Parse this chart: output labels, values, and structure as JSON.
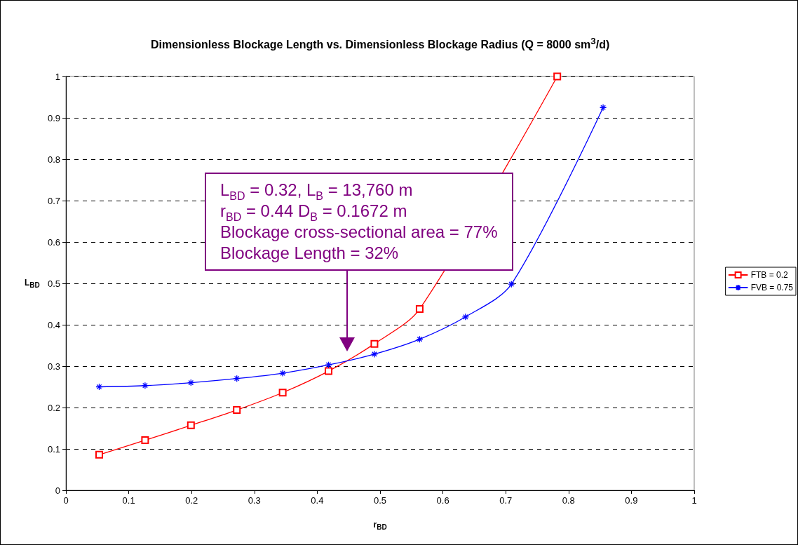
{
  "chart_data": {
    "type": "line",
    "title": "Dimensionless Blockage Length vs. Dimensionless Blockage Radius (Q = 8000 sm$^{3}$/d)",
    "xlabel": "r$_{BD}$",
    "ylabel": "L$_{BD}$",
    "x": [
      0.053,
      0.126,
      0.199,
      0.272,
      0.345,
      0.418,
      0.491,
      0.563,
      0.636,
      0.709,
      0.782,
      0.855
    ],
    "series": [
      {
        "name": "FTB = 0.2",
        "color": "#ff0000",
        "marker": "square",
        "values": [
          0.086,
          0.121,
          0.157,
          0.194,
          0.236,
          0.288,
          0.354,
          0.438,
          null,
          null,
          1.0,
          null
        ]
      },
      {
        "name": "FVB = 0.75",
        "color": "#0000ff",
        "marker": "cross",
        "values": [
          0.25,
          0.253,
          0.26,
          0.27,
          0.283,
          0.303,
          0.329,
          0.365,
          0.419,
          0.498,
          null,
          0.925
        ]
      }
    ],
    "xlim": [
      0,
      1
    ],
    "xticks": [
      0,
      0.1,
      0.2,
      0.3,
      0.4,
      0.5,
      0.6,
      0.7,
      0.8,
      0.9,
      1
    ],
    "ylim": [
      0,
      1
    ],
    "yticks": [
      0,
      0.1,
      0.2,
      0.3,
      0.4,
      0.5,
      0.6,
      0.7,
      0.8,
      0.9,
      1
    ],
    "grid": "y",
    "legend": "right",
    "line_style": "solid",
    "annotations": [
      "L$_{BD}$ = 0.32, L$_{B}$ = 13,760 m\nr$_{BD}$ = 0.44 D$_{B}$ = 0.1672 m\nBlockage cross-sectional area = 77%\nBlockage Length = 32%"
    ]
  }
}
